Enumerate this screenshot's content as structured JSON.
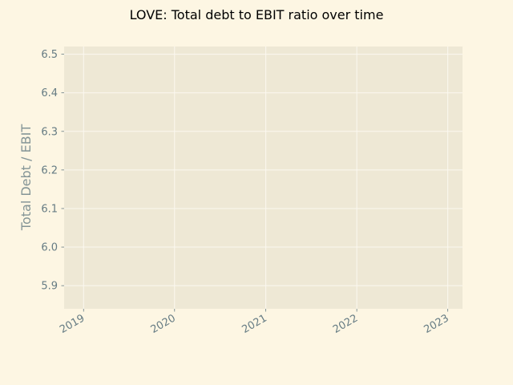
{
  "colors": {
    "figure_background": "#fdf6e3",
    "plot_background": "#eee8d5",
    "grid": "#fbf8f0",
    "tick_text": "#657b83",
    "label_text": "#839496",
    "title_text": "#000000"
  },
  "chart_data": {
    "type": "line",
    "title": "LOVE: Total debt to EBIT ratio over time",
    "xlabel": "",
    "ylabel": "Total Debt / EBIT",
    "x_tick_labels": [
      "2019",
      "2020",
      "2021",
      "2022",
      "2023"
    ],
    "y_tick_labels": [
      "5.9",
      "6.0",
      "6.1",
      "6.2",
      "6.3",
      "6.4",
      "6.5"
    ],
    "y_ticks": [
      5.9,
      6.0,
      6.1,
      6.2,
      6.3,
      6.4,
      6.5
    ],
    "ylim": [
      5.84,
      6.52
    ],
    "xlim": [
      "2018-10-15",
      "2023-03-01"
    ],
    "x_ticks": [
      "2019-01-01",
      "2020-01-01",
      "2021-01-01",
      "2022-01-01",
      "2023-01-01"
    ],
    "grid": true,
    "series": []
  }
}
